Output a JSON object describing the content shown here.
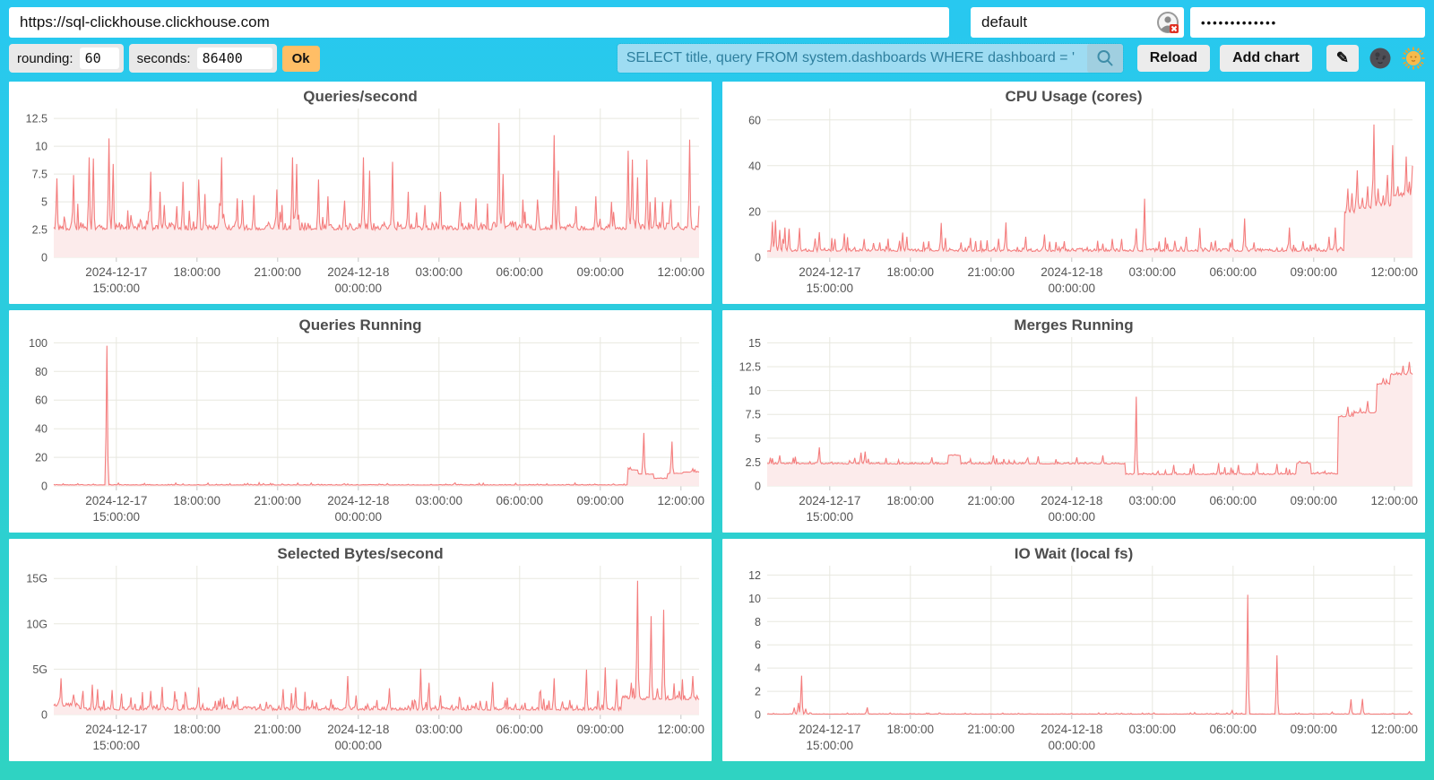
{
  "toolbar": {
    "url": "https://sql-clickhouse.clickhouse.com",
    "user": "default",
    "password_masked": "•••••••••••••",
    "rounding_label": "rounding:",
    "rounding_value": "60",
    "seconds_label": "seconds:",
    "seconds_value": "86400",
    "ok_label": "Ok",
    "search_query": "SELECT title, query FROM system.dashboards WHERE dashboard = '",
    "reload_label": "Reload",
    "add_chart_label": "Add chart",
    "edit_icon": "✎"
  },
  "chart_style": {
    "line_color": "#f47d7d",
    "fill_color": "#fcebeb",
    "grid_color": "#e8e8df",
    "tick_color": "#c4c4c4",
    "text_color": "#555555",
    "samples": 620
  },
  "time_axis": {
    "ticks": [
      {
        "x": 0.097,
        "lines": [
          "2024-12-17",
          "15:00:00"
        ]
      },
      {
        "x": 0.222,
        "lines": [
          "18:00:00"
        ]
      },
      {
        "x": 0.347,
        "lines": [
          "21:00:00"
        ]
      },
      {
        "x": 0.472,
        "lines": [
          "2024-12-18",
          "00:00:00"
        ]
      },
      {
        "x": 0.597,
        "lines": [
          "03:00:00"
        ]
      },
      {
        "x": 0.722,
        "lines": [
          "06:00:00"
        ]
      },
      {
        "x": 0.847,
        "lines": [
          "09:00:00"
        ]
      },
      {
        "x": 0.972,
        "lines": [
          "12:00:00"
        ]
      }
    ]
  },
  "chart_data": [
    {
      "type": "line",
      "title": "Queries/second",
      "seed": 11,
      "ymax": 13.4,
      "noise": 1.1,
      "yticks": [
        [
          0,
          "0"
        ],
        [
          2.5,
          "2.5"
        ],
        [
          5,
          "5"
        ],
        [
          7.5,
          "7.5"
        ],
        [
          10,
          "10"
        ],
        [
          12.5,
          "12.5"
        ]
      ],
      "baseline": [
        [
          0,
          1,
          2.3
        ]
      ],
      "spikes": [
        [
          0.005,
          7.1
        ],
        [
          0.03,
          7.4
        ],
        [
          0.055,
          9.0
        ],
        [
          0.062,
          8.9
        ],
        [
          0.085,
          10.7
        ],
        [
          0.092,
          8.4
        ],
        [
          0.12,
          3.8
        ],
        [
          0.15,
          7.7
        ],
        [
          0.165,
          5.9
        ],
        [
          0.19,
          4.6
        ],
        [
          0.2,
          6.8
        ],
        [
          0.225,
          7.0
        ],
        [
          0.235,
          5.7
        ],
        [
          0.26,
          9.0
        ],
        [
          0.285,
          5.3
        ],
        [
          0.31,
          5.6
        ],
        [
          0.345,
          6.1
        ],
        [
          0.37,
          9.0
        ],
        [
          0.377,
          8.4
        ],
        [
          0.41,
          7.0
        ],
        [
          0.425,
          5.5
        ],
        [
          0.45,
          5.1
        ],
        [
          0.48,
          9.0
        ],
        [
          0.49,
          7.8
        ],
        [
          0.525,
          8.6
        ],
        [
          0.55,
          5.9
        ],
        [
          0.575,
          4.7
        ],
        [
          0.6,
          5.9
        ],
        [
          0.63,
          5.0
        ],
        [
          0.655,
          5.3
        ],
        [
          0.69,
          12.1
        ],
        [
          0.697,
          7.5
        ],
        [
          0.73,
          4.1
        ],
        [
          0.75,
          5.2
        ],
        [
          0.775,
          11.0
        ],
        [
          0.782,
          7.8
        ],
        [
          0.81,
          4.6
        ],
        [
          0.84,
          5.5
        ],
        [
          0.865,
          5.0
        ],
        [
          0.89,
          9.6
        ],
        [
          0.897,
          8.8
        ],
        [
          0.905,
          7.2
        ],
        [
          0.92,
          8.8
        ],
        [
          0.932,
          5.4
        ],
        [
          0.944,
          5.0
        ],
        [
          0.957,
          5.2
        ],
        [
          0.985,
          10.6
        ]
      ]
    },
    {
      "type": "line",
      "title": "CPU Usage (cores)",
      "seed": 22,
      "ymax": 65,
      "noise": 2.6,
      "yticks": [
        [
          0,
          "0"
        ],
        [
          20,
          "20"
        ],
        [
          40,
          "40"
        ],
        [
          60,
          "60"
        ]
      ],
      "baseline": [
        [
          0,
          0.894,
          2.2
        ],
        [
          0.894,
          0.91,
          19
        ],
        [
          0.91,
          0.94,
          21
        ],
        [
          0.94,
          0.97,
          22
        ],
        [
          0.97,
          1,
          26
        ]
      ],
      "spikes": [
        [
          0.008,
          15.5
        ],
        [
          0.013,
          16.3
        ],
        [
          0.02,
          12.0
        ],
        [
          0.028,
          13.0
        ],
        [
          0.034,
          12.4
        ],
        [
          0.05,
          12.8
        ],
        [
          0.08,
          11.0
        ],
        [
          0.105,
          8.0
        ],
        [
          0.12,
          10.4
        ],
        [
          0.15,
          8.0
        ],
        [
          0.175,
          6.5
        ],
        [
          0.21,
          10.8
        ],
        [
          0.216,
          9.0
        ],
        [
          0.25,
          7.0
        ],
        [
          0.27,
          15.0
        ],
        [
          0.3,
          6.5
        ],
        [
          0.315,
          8.5
        ],
        [
          0.37,
          15.2
        ],
        [
          0.4,
          9.0
        ],
        [
          0.43,
          10.0
        ],
        [
          0.46,
          7.0
        ],
        [
          0.52,
          6.0
        ],
        [
          0.55,
          8.0
        ],
        [
          0.572,
          12.6
        ],
        [
          0.585,
          25.6
        ],
        [
          0.62,
          6.0
        ],
        [
          0.65,
          9.0
        ],
        [
          0.67,
          12.8
        ],
        [
          0.72,
          8.0
        ],
        [
          0.74,
          17.0
        ],
        [
          0.755,
          6.5
        ],
        [
          0.81,
          13.0
        ],
        [
          0.83,
          7.0
        ],
        [
          0.85,
          6.0
        ],
        [
          0.87,
          9.0
        ],
        [
          0.88,
          13.0
        ],
        [
          0.9,
          30.0
        ],
        [
          0.906,
          28.0
        ],
        [
          0.915,
          38.0
        ],
        [
          0.922,
          26.0
        ],
        [
          0.93,
          31.0
        ],
        [
          0.94,
          58.0
        ],
        [
          0.947,
          30.0
        ],
        [
          0.955,
          27.0
        ],
        [
          0.962,
          36.0
        ],
        [
          0.97,
          49.0
        ],
        [
          0.978,
          31.0
        ],
        [
          0.985,
          28.0
        ],
        [
          0.99,
          44.0
        ],
        [
          0.995,
          33.0
        ],
        [
          1,
          40.0
        ]
      ]
    },
    {
      "type": "line",
      "title": "Queries Running",
      "seed": 33,
      "ymax": 104,
      "noise": 0.7,
      "yticks": [
        [
          0,
          "0"
        ],
        [
          20,
          "20"
        ],
        [
          40,
          "40"
        ],
        [
          60,
          "60"
        ],
        [
          80,
          "80"
        ],
        [
          100,
          "100"
        ]
      ],
      "baseline": [
        [
          0,
          0.889,
          0.5
        ],
        [
          0.889,
          0.905,
          11
        ],
        [
          0.905,
          0.93,
          8
        ],
        [
          0.93,
          0.95,
          5
        ],
        [
          0.95,
          0.975,
          8.5
        ],
        [
          0.975,
          1,
          9.5
        ]
      ],
      "spikes": [
        [
          0.083,
          98.0
        ],
        [
          0.1,
          2.0
        ],
        [
          0.2,
          1.5
        ],
        [
          0.3,
          1.8
        ],
        [
          0.45,
          1.5
        ],
        [
          0.55,
          1.2
        ],
        [
          0.62,
          1.6
        ],
        [
          0.75,
          1.4
        ],
        [
          0.893,
          13.0
        ],
        [
          0.915,
          37.0
        ],
        [
          0.958,
          31.0
        ],
        [
          0.99,
          12.0
        ]
      ]
    },
    {
      "type": "line",
      "title": "Merges Running",
      "seed": 44,
      "ymax": 15.6,
      "noise": 0.3,
      "yticks": [
        [
          0,
          "0"
        ],
        [
          2.5,
          "2.5"
        ],
        [
          5,
          "5"
        ],
        [
          7.5,
          "7.5"
        ],
        [
          10,
          "10"
        ],
        [
          12.5,
          "12.5"
        ],
        [
          15,
          "15"
        ]
      ],
      "baseline": [
        [
          0,
          0.28,
          2.25
        ],
        [
          0.28,
          0.3,
          3.15
        ],
        [
          0.3,
          0.555,
          2.25
        ],
        [
          0.555,
          0.82,
          1.15
        ],
        [
          0.82,
          0.842,
          2.3
        ],
        [
          0.842,
          0.884,
          1.2
        ],
        [
          0.884,
          0.91,
          7.2
        ],
        [
          0.91,
          0.945,
          7.6
        ],
        [
          0.945,
          0.965,
          10.6
        ],
        [
          0.965,
          1,
          11.6
        ]
      ],
      "spikes": [
        [
          0.02,
          3.2
        ],
        [
          0.08,
          4.05
        ],
        [
          0.145,
          3.5
        ],
        [
          0.152,
          3.6
        ],
        [
          0.255,
          3.0
        ],
        [
          0.35,
          3.2
        ],
        [
          0.42,
          3.1
        ],
        [
          0.48,
          3.0
        ],
        [
          0.52,
          3.2
        ],
        [
          0.572,
          9.35
        ],
        [
          0.63,
          2.2
        ],
        [
          0.66,
          2.3
        ],
        [
          0.7,
          2.4
        ],
        [
          0.73,
          2.2
        ],
        [
          0.76,
          2.4
        ],
        [
          0.79,
          2.3
        ],
        [
          0.9,
          8.3
        ],
        [
          0.92,
          8.1
        ],
        [
          0.93,
          8.9
        ],
        [
          0.955,
          11.3
        ],
        [
          0.975,
          11.9
        ],
        [
          0.985,
          12.6
        ],
        [
          0.995,
          13.0
        ]
      ]
    },
    {
      "type": "line",
      "title": "Selected Bytes/second",
      "seed": 55,
      "ymax": 16.4,
      "noise": 0.85,
      "yticks": [
        [
          0,
          "0"
        ],
        [
          5,
          "5G"
        ],
        [
          10,
          "10G"
        ],
        [
          15,
          "15G"
        ]
      ],
      "baseline": [
        [
          0,
          0.04,
          0.8
        ],
        [
          0.04,
          0.88,
          0.35
        ],
        [
          0.88,
          1,
          1.5
        ]
      ],
      "spikes": [
        [
          0.012,
          4.0
        ],
        [
          0.03,
          2.2
        ],
        [
          0.045,
          2.6
        ],
        [
          0.06,
          3.3
        ],
        [
          0.068,
          2.8
        ],
        [
          0.09,
          2.7
        ],
        [
          0.105,
          2.3
        ],
        [
          0.12,
          1.9
        ],
        [
          0.15,
          2.6
        ],
        [
          0.168,
          3.05
        ],
        [
          0.19,
          1.6
        ],
        [
          0.225,
          3.0
        ],
        [
          0.25,
          1.5
        ],
        [
          0.285,
          2.0
        ],
        [
          0.33,
          1.4
        ],
        [
          0.355,
          2.8
        ],
        [
          0.375,
          3.0
        ],
        [
          0.4,
          1.6
        ],
        [
          0.43,
          1.7
        ],
        [
          0.455,
          4.25
        ],
        [
          0.468,
          2.1
        ],
        [
          0.5,
          1.6
        ],
        [
          0.52,
          2.9
        ],
        [
          0.555,
          1.6
        ],
        [
          0.568,
          5.05
        ],
        [
          0.582,
          3.5
        ],
        [
          0.6,
          2.1
        ],
        [
          0.63,
          1.6
        ],
        [
          0.655,
          1.3
        ],
        [
          0.68,
          3.6
        ],
        [
          0.7,
          1.6
        ],
        [
          0.73,
          1.3
        ],
        [
          0.755,
          2.6
        ],
        [
          0.775,
          4.0
        ],
        [
          0.8,
          1.6
        ],
        [
          0.825,
          4.95
        ],
        [
          0.855,
          5.2
        ],
        [
          0.872,
          3.9
        ],
        [
          0.895,
          3.5
        ],
        [
          0.905,
          14.75
        ],
        [
          0.925,
          10.85
        ],
        [
          0.945,
          11.55
        ],
        [
          0.97,
          2.6
        ],
        [
          0.99,
          4.25
        ]
      ]
    },
    {
      "type": "line",
      "title": "IO Wait (local fs)",
      "seed": 66,
      "ymax": 12.8,
      "noise": 0.05,
      "yticks": [
        [
          0,
          "0"
        ],
        [
          2,
          "2"
        ],
        [
          4,
          "4"
        ],
        [
          6,
          "6"
        ],
        [
          8,
          "8"
        ],
        [
          10,
          "10"
        ],
        [
          12,
          "12"
        ]
      ],
      "baseline": [
        [
          0,
          1,
          0.03
        ]
      ],
      "spikes": [
        [
          0.042,
          0.6
        ],
        [
          0.048,
          1.0
        ],
        [
          0.054,
          3.35
        ],
        [
          0.06,
          0.5
        ],
        [
          0.155,
          0.62
        ],
        [
          0.19,
          0.15
        ],
        [
          0.315,
          0.1
        ],
        [
          0.55,
          0.12
        ],
        [
          0.6,
          0.15
        ],
        [
          0.7,
          0.1
        ],
        [
          0.72,
          0.35
        ],
        [
          0.745,
          10.3
        ],
        [
          0.79,
          5.1
        ],
        [
          0.875,
          0.22
        ],
        [
          0.905,
          1.3
        ],
        [
          0.922,
          1.35
        ],
        [
          0.97,
          0.12
        ],
        [
          0.995,
          0.25
        ]
      ]
    }
  ]
}
